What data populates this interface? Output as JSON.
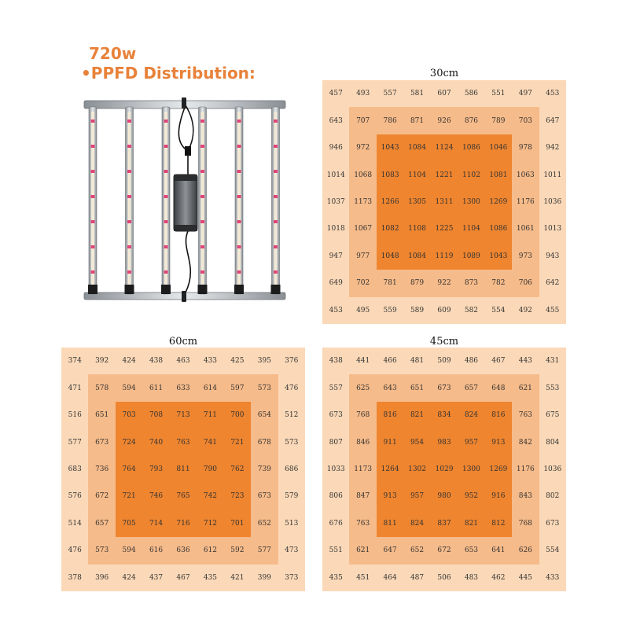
{
  "header": {
    "power": "720w",
    "title": "•PPFD Distribution:"
  },
  "colors": {
    "heading": "#e8823a",
    "outer": "#fbd9b8",
    "middle": "#f6bb8a",
    "inner": "#ef852f"
  },
  "product_image": {
    "icon": "led-grow-light-fixture-icon",
    "bars": 6
  },
  "grids": [
    {
      "title": "30cm",
      "rows": [
        [
          "457",
          "493",
          "557",
          "581",
          "607",
          "586",
          "551",
          "497",
          "453"
        ],
        [
          "643",
          "707",
          "786",
          "871",
          "926",
          "876",
          "789",
          "703",
          "647"
        ],
        [
          "946",
          "972",
          "1043",
          "1084",
          "1124",
          "1086",
          "1046",
          "978",
          "942"
        ],
        [
          "1014",
          "1068",
          "1083",
          "1104",
          "1221",
          "1102",
          "1081",
          "1063",
          "1011"
        ],
        [
          "1037",
          "1173",
          "1266",
          "1305",
          "1311",
          "1300",
          "1269",
          "1176",
          "1036"
        ],
        [
          "1018",
          "1067",
          "1082",
          "1108",
          "1225",
          "1104",
          "1086",
          "1061",
          "1013"
        ],
        [
          "947",
          "977",
          "1048",
          "1084",
          "1119",
          "1089",
          "1043",
          "973",
          "943"
        ],
        [
          "649",
          "702",
          "781",
          "879",
          "922",
          "873",
          "782",
          "706",
          "642"
        ],
        [
          "453",
          "495",
          "559",
          "589",
          "609",
          "582",
          "554",
          "492",
          "455"
        ]
      ]
    },
    {
      "title": "60cm",
      "rows": [
        [
          "374",
          "392",
          "424",
          "438",
          "463",
          "433",
          "425",
          "395",
          "376"
        ],
        [
          "471",
          "578",
          "594",
          "611",
          "633",
          "614",
          "597",
          "573",
          "476"
        ],
        [
          "516",
          "651",
          "703",
          "708",
          "713",
          "711",
          "700",
          "654",
          "512"
        ],
        [
          "577",
          "673",
          "724",
          "740",
          "763",
          "741",
          "721",
          "678",
          "573"
        ],
        [
          "683",
          "736",
          "764",
          "793",
          "811",
          "790",
          "762",
          "739",
          "686"
        ],
        [
          "576",
          "672",
          "721",
          "746",
          "765",
          "742",
          "723",
          "673",
          "579"
        ],
        [
          "514",
          "657",
          "705",
          "714",
          "716",
          "712",
          "701",
          "652",
          "513"
        ],
        [
          "476",
          "573",
          "594",
          "616",
          "636",
          "612",
          "592",
          "577",
          "473"
        ],
        [
          "378",
          "396",
          "424",
          "437",
          "467",
          "435",
          "421",
          "399",
          "373"
        ]
      ]
    },
    {
      "title": "45cm",
      "rows": [
        [
          "438",
          "441",
          "466",
          "481",
          "509",
          "486",
          "467",
          "443",
          "431"
        ],
        [
          "557",
          "625",
          "643",
          "651",
          "673",
          "657",
          "648",
          "621",
          "553"
        ],
        [
          "673",
          "768",
          "816",
          "821",
          "834",
          "824",
          "816",
          "763",
          "675"
        ],
        [
          "807",
          "846",
          "911",
          "954",
          "983",
          "957",
          "913",
          "842",
          "804"
        ],
        [
          "1033",
          "1173",
          "1264",
          "1302",
          "1029",
          "1300",
          "1269",
          "1176",
          "1036"
        ],
        [
          "806",
          "847",
          "913",
          "957",
          "980",
          "952",
          "916",
          "843",
          "802"
        ],
        [
          "676",
          "763",
          "811",
          "824",
          "837",
          "821",
          "812",
          "768",
          "673"
        ],
        [
          "551",
          "621",
          "647",
          "652",
          "672",
          "653",
          "641",
          "626",
          "554"
        ],
        [
          "435",
          "451",
          "464",
          "487",
          "506",
          "483",
          "462",
          "445",
          "433"
        ]
      ]
    }
  ]
}
